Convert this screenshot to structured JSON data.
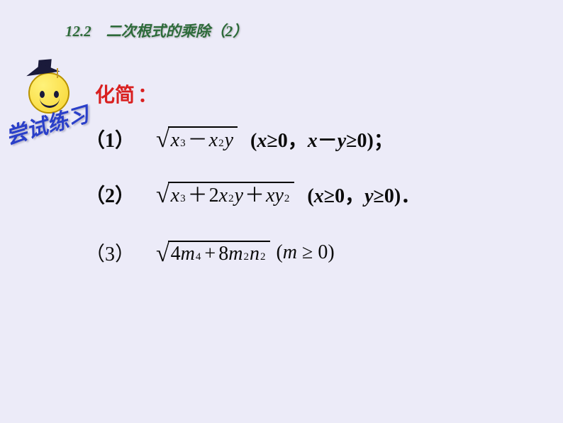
{
  "header": "12.2　二次根式的乘除（2）",
  "practice_label": "尝试练习",
  "simplify_label": "化简",
  "colon": "：",
  "problems": {
    "p1_num": "（1）",
    "p1_expr_a": "x",
    "p1_expr_a_exp": "3",
    "p1_minus": "－",
    "p1_expr_b": "x",
    "p1_expr_b_exp": "2",
    "p1_expr_c": "y",
    "p1_cond_open": "(",
    "p1_cond_x": "x",
    "p1_cond_ge1": "≥0，",
    "p1_cond_x2": "x",
    "p1_cond_minus": "－",
    "p1_cond_y": "y",
    "p1_cond_end": "≥0)；",
    "p2_num": "（2）",
    "p2_a": "x",
    "p2_a_exp": "3",
    "p2_plus1": "＋",
    "p2_two": "2",
    "p2_b": "x",
    "p2_b_exp": "2",
    "p2_c": "y",
    "p2_plus2": "＋",
    "p2_d": "x",
    "p2_e": "y",
    "p2_e_exp": "2",
    "p2_cond_open": "(",
    "p2_cond_x": "x",
    "p2_cond_ge1": "≥0，",
    "p2_cond_y": "y",
    "p2_cond_end": "≥0)．",
    "p3_num": "（3）",
    "p3_four": "4",
    "p3_m1": "m",
    "p3_m1_exp": "4",
    "p3_plus": "+",
    "p3_eight": "8",
    "p3_m2": "m",
    "p3_m2_exp": "2",
    "p3_n": "n",
    "p3_n_exp": "2",
    "p3_cond_open": "(",
    "p3_cond_m": "m",
    "p3_cond_ge": " ≥ 0)"
  },
  "colors": {
    "background": "#ecebf8",
    "header_color": "#2d6b3a",
    "simplify_color": "#d92020",
    "practice_color": "#2a3fc9",
    "text_color": "#0b0b0b"
  }
}
